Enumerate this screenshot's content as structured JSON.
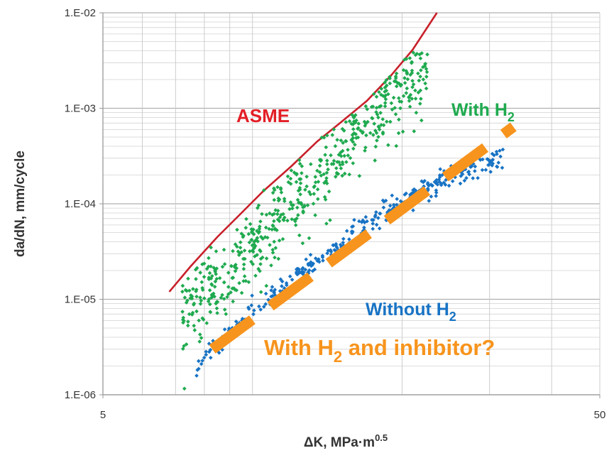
{
  "chart_data": {
    "type": "scatter",
    "xlabel": "ΔK, MPa·m",
    "xlabel_superscript": "0.5",
    "ylabel": "da/dN, mm/cycle",
    "x_scale": "log",
    "y_scale": "log",
    "xlim": [
      5,
      50
    ],
    "ylim": [
      1e-06,
      0.01
    ],
    "x_tick_labels": [
      "5",
      "50"
    ],
    "y_tick_labels": [
      "1.E-06",
      "1.E-05",
      "1.E-04",
      "1.E-03",
      "1.E-02"
    ],
    "grid": true,
    "annotations": [
      {
        "text": "ASME",
        "color": "#e31e26"
      },
      {
        "text": "With H",
        "sub": "2",
        "color": "#1faa4f"
      },
      {
        "text": "Without H",
        "sub": "2",
        "color": "#1873c4"
      },
      {
        "text": "With H",
        "sub": "2",
        "text_after": " and inhibitor?",
        "color": "#f7941d"
      }
    ],
    "series": [
      {
        "style": "line",
        "color": "#c8202a",
        "x": [
          6.8,
          7.5,
          8.5,
          9.5,
          10.5,
          12,
          13.5,
          15,
          17,
          19,
          21,
          23.5
        ],
        "y": [
          1.2e-05,
          2.2e-05,
          4.5e-05,
          8e-05,
          0.000135,
          0.00025,
          0.00045,
          0.0007,
          0.0012,
          0.0022,
          0.0041,
          0.01
        ]
      },
      {
        "style": "scatter",
        "color": "#1faa4f",
        "description_band": {
          "x_range": [
            7.2,
            22.5
          ],
          "trend": {
            "x": [
              7.2,
              9,
              11,
              13,
              15,
              17,
              19,
              21,
              22.5
            ],
            "y": [
              7e-06,
              1.8e-05,
              6e-05,
              0.00017,
              0.00042,
              0.00085,
              0.0015,
              0.0022,
              0.0027
            ]
          },
          "spread_decades": 0.55,
          "count": 620
        }
      },
      {
        "style": "scatter",
        "color": "#1873c4",
        "description_band": {
          "x_range": [
            7.7,
            32
          ],
          "trend": {
            "x": [
              7.7,
              9,
              11,
              13,
              15,
              17,
              19,
              21,
              24,
              27,
              30,
              32
            ],
            "y": [
              2e-06,
              4.5e-06,
              1.1e-05,
              2.1e-05,
              3.8e-05,
              6e-05,
              8.7e-05,
              0.000125,
              0.00017,
              0.00022,
              0.00028,
              0.00032
            ]
          },
          "spread_decades": 0.14,
          "count": 330
        }
      },
      {
        "style": "dashed-line",
        "color": "#f7941d",
        "x": [
          8.3,
          33.5
        ],
        "y": [
          3e-06,
          0.00064
        ]
      }
    ]
  }
}
